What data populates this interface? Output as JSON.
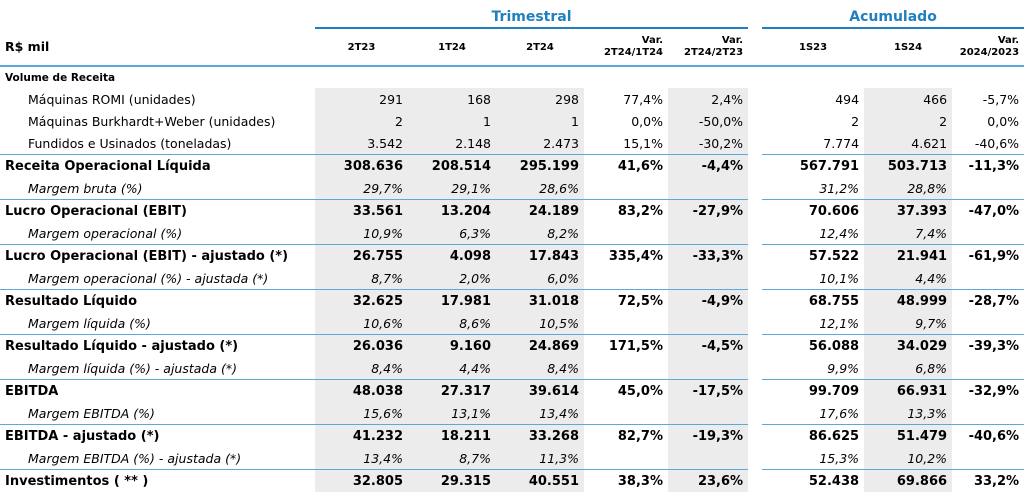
{
  "header": {
    "trimestral": "Trimestral",
    "acumulado": "Acumulado",
    "unit_label": "R$ mil",
    "columns": [
      "2T23",
      "1T24",
      "2T24",
      "Var.|2T24/1T24",
      "Var.|2T24/2T23",
      "1S23",
      "1S24",
      "Var.|2024/2023"
    ]
  },
  "section_title": "Volume de Receita",
  "rows": [
    {
      "type": "item",
      "label": "Máquinas ROMI (unidades)",
      "v": [
        "291",
        "168",
        "298",
        "77,4%",
        "2,4%",
        "494",
        "466",
        "-5,7%"
      ]
    },
    {
      "type": "item",
      "label": "Máquinas Burkhardt+Weber (unidades)",
      "v": [
        "2",
        "1",
        "1",
        "0,0%",
        "-50,0%",
        "2",
        "2",
        "0,0%"
      ]
    },
    {
      "type": "item",
      "label": "Fundidos e Usinados (toneladas)",
      "v": [
        "3.542",
        "2.148",
        "2.473",
        "15,1%",
        "-30,2%",
        "7.774",
        "4.621",
        "-40,6%"
      ]
    },
    {
      "type": "main",
      "label": "Receita Operacional Líquida",
      "v": [
        "308.636",
        "208.514",
        "295.199",
        "41,6%",
        "-4,4%",
        "567.791",
        "503.713",
        "-11,3%"
      ]
    },
    {
      "type": "sub",
      "label": "Margem bruta (%)",
      "v": [
        "29,7%",
        "29,1%",
        "28,6%",
        "",
        "",
        "31,2%",
        "28,8%",
        ""
      ]
    },
    {
      "type": "main",
      "label": "Lucro Operacional (EBIT)",
      "v": [
        "33.561",
        "13.204",
        "24.189",
        "83,2%",
        "-27,9%",
        "70.606",
        "37.393",
        "-47,0%"
      ]
    },
    {
      "type": "sub",
      "label": "Margem operacional  (%)",
      "v": [
        "10,9%",
        "6,3%",
        "8,2%",
        "",
        "",
        "12,4%",
        "7,4%",
        ""
      ]
    },
    {
      "type": "main",
      "label": "Lucro Operacional (EBIT) - ajustado (*)",
      "v": [
        "26.755",
        "4.098",
        "17.843",
        "335,4%",
        "-33,3%",
        "57.522",
        "21.941",
        "-61,9%"
      ]
    },
    {
      "type": "sub",
      "label": "Margem operacional  (%) - ajustada (*)",
      "v": [
        "8,7%",
        "2,0%",
        "6,0%",
        "",
        "",
        "10,1%",
        "4,4%",
        ""
      ]
    },
    {
      "type": "main",
      "label": "Resultado Líquido",
      "v": [
        "32.625",
        "17.981",
        "31.018",
        "72,5%",
        "-4,9%",
        "68.755",
        "48.999",
        "-28,7%"
      ]
    },
    {
      "type": "sub",
      "label": "Margem líquida (%)",
      "v": [
        "10,6%",
        "8,6%",
        "10,5%",
        "",
        "",
        "12,1%",
        "9,7%",
        ""
      ]
    },
    {
      "type": "main",
      "label": "Resultado Líquido - ajustado (*)",
      "v": [
        "26.036",
        "9.160",
        "24.869",
        "171,5%",
        "-4,5%",
        "56.088",
        "34.029",
        "-39,3%"
      ]
    },
    {
      "type": "sub",
      "label": "Margem líquida (%) - ajustada (*)",
      "v": [
        "8,4%",
        "4,4%",
        "8,4%",
        "",
        "",
        "9,9%",
        "6,8%",
        ""
      ]
    },
    {
      "type": "main",
      "label": "EBITDA",
      "v": [
        "48.038",
        "27.317",
        "39.614",
        "45,0%",
        "-17,5%",
        "99.709",
        "66.931",
        "-32,9%"
      ]
    },
    {
      "type": "sub",
      "label": "Margem EBITDA (%)",
      "v": [
        "15,6%",
        "13,1%",
        "13,4%",
        "",
        "",
        "17,6%",
        "13,3%",
        ""
      ]
    },
    {
      "type": "main",
      "label": "EBITDA - ajustado (*)",
      "v": [
        "41.232",
        "18.211",
        "33.268",
        "82,7%",
        "-19,3%",
        "86.625",
        "51.479",
        "-40,6%"
      ]
    },
    {
      "type": "sub",
      "label": "Margem EBITDA (%) - ajustada (*)",
      "v": [
        "13,4%",
        "8,7%",
        "11,3%",
        "",
        "",
        "15,3%",
        "10,2%",
        ""
      ]
    },
    {
      "type": "main",
      "label": "Investimentos ( ** )",
      "v": [
        "32.805",
        "29.315",
        "40.551",
        "38,3%",
        "23,6%",
        "52.438",
        "69.866",
        "33,2%"
      ]
    }
  ]
}
